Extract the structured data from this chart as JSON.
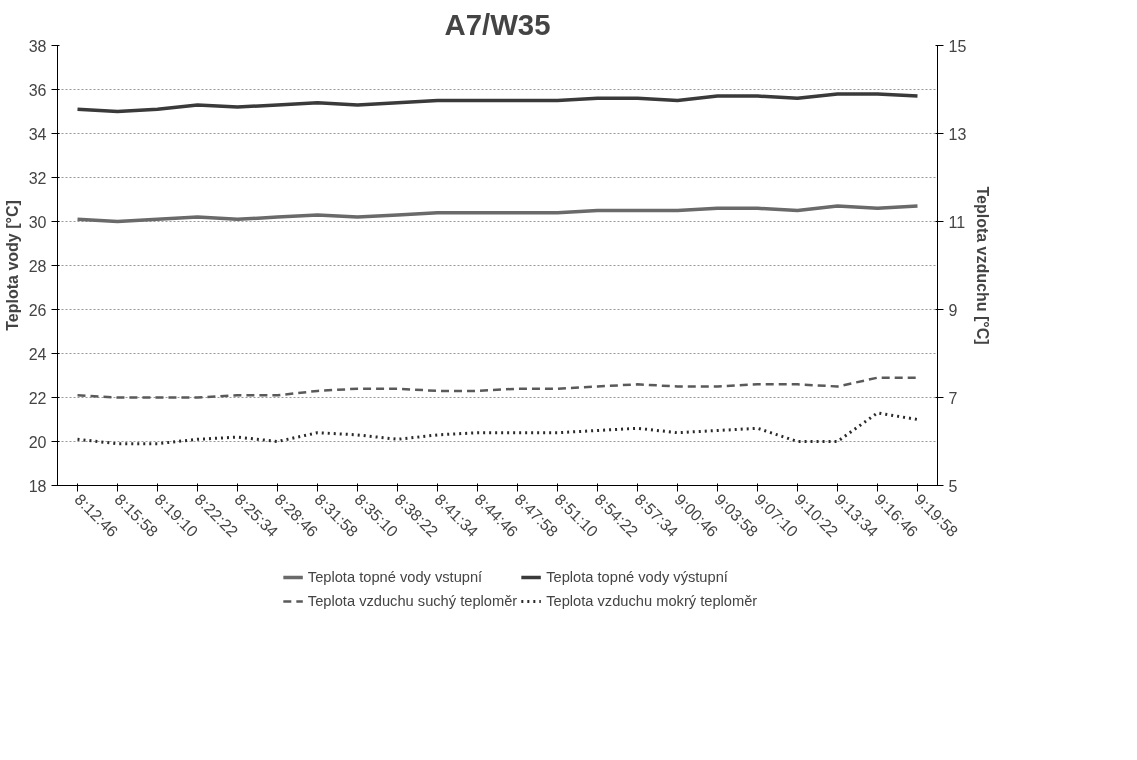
{
  "chart_data": {
    "type": "line",
    "title": "A7/W35",
    "ylabel": "Teplota vody [°C]",
    "y2label": "Teplota vzduchu [°C]",
    "categories": [
      "8:12:46",
      "8:15:58",
      "8:19:10",
      "8:22:22",
      "8:25:34",
      "8:28:46",
      "8:31:58",
      "8:35:10",
      "8:38:22",
      "8:41:34",
      "8:44:46",
      "8:47:58",
      "8:51:10",
      "8:54:22",
      "8:57:34",
      "9:00:46",
      "9:03:58",
      "9:07:10",
      "9:10:22",
      "9:13:34",
      "9:16:46",
      "9:19:58"
    ],
    "ylim": [
      18,
      38
    ],
    "yticks": [
      18,
      20,
      22,
      24,
      26,
      28,
      30,
      32,
      34,
      36,
      38
    ],
    "y2lim": [
      5,
      15
    ],
    "y2ticks": [
      5,
      7,
      9,
      11,
      13,
      15
    ],
    "grid": "y",
    "legend": "bottom",
    "series": [
      {
        "name": "Teplota topné vody vstupní",
        "color": "#6a6a6a",
        "line_style": "solid",
        "values": [
          30.1,
          30.0,
          30.1,
          30.2,
          30.1,
          30.2,
          30.3,
          30.2,
          30.3,
          30.4,
          30.4,
          30.4,
          30.4,
          30.5,
          30.5,
          30.5,
          30.6,
          30.6,
          30.5,
          30.7,
          30.6,
          30.7
        ]
      },
      {
        "name": "Teplota topné vody výstupní",
        "color": "#3a3a3a",
        "line_style": "solid",
        "values": [
          35.1,
          35.0,
          35.1,
          35.3,
          35.2,
          35.3,
          35.4,
          35.3,
          35.4,
          35.5,
          35.5,
          35.5,
          35.5,
          35.6,
          35.6,
          35.5,
          35.7,
          35.7,
          35.6,
          35.8,
          35.8,
          35.7
        ]
      },
      {
        "name": "Teplota vzduchu suchý teploměr",
        "color": "#5a5a5a",
        "line_style": "dashed",
        "axis": "y2",
        "values": [
          7.05,
          7.0,
          7.0,
          7.0,
          7.05,
          7.05,
          7.15,
          7.2,
          7.2,
          7.15,
          7.15,
          7.2,
          7.2,
          7.25,
          7.3,
          7.25,
          7.25,
          7.3,
          7.3,
          7.25,
          7.45,
          7.45
        ]
      },
      {
        "name": "Teplota vzduchu mokrý teploměr",
        "color": "#2a2a2a",
        "line_style": "dotted",
        "axis": "y2",
        "values": [
          6.05,
          5.95,
          5.95,
          6.05,
          6.1,
          6.0,
          6.2,
          6.15,
          6.05,
          6.15,
          6.2,
          6.2,
          6.2,
          6.25,
          6.3,
          6.2,
          6.25,
          6.3,
          6.0,
          6.0,
          6.65,
          6.5
        ]
      }
    ]
  }
}
